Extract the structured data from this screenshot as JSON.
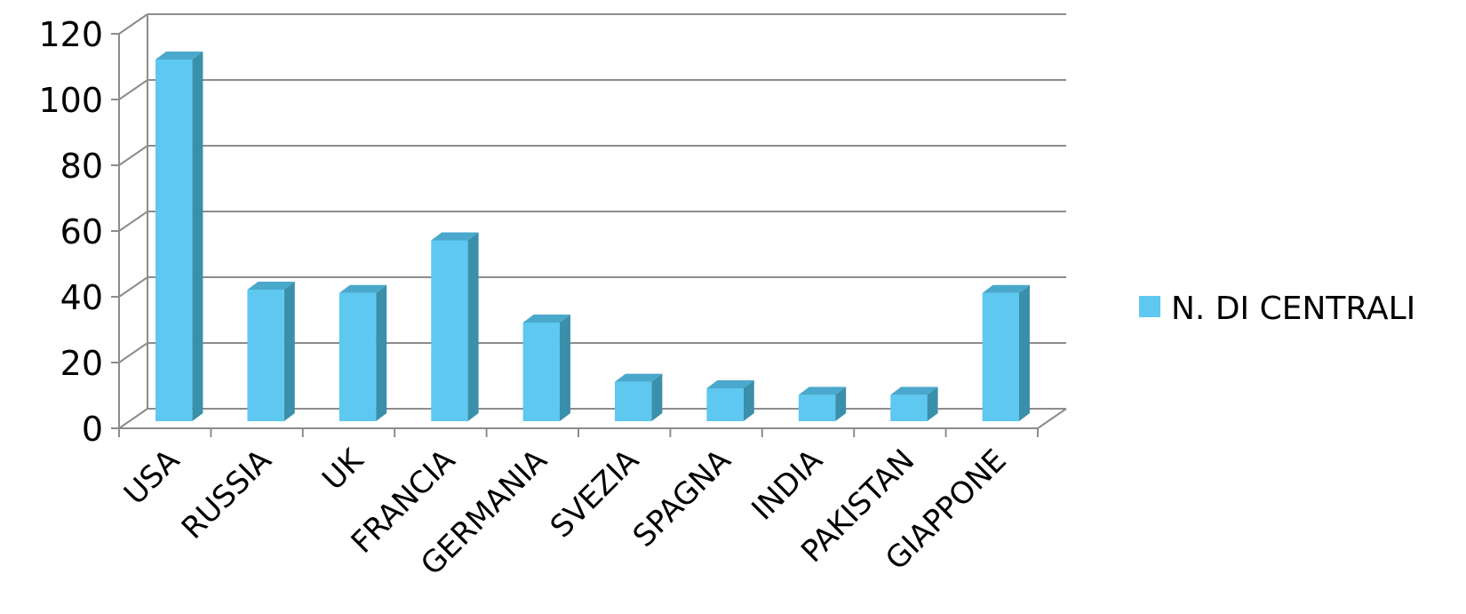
{
  "chart_data": {
    "type": "bar",
    "style": "3d-clustered-column",
    "title": "",
    "xlabel": "",
    "ylabel": "",
    "ylim": [
      0,
      120
    ],
    "y_ticks": [
      0,
      20,
      40,
      60,
      80,
      100,
      120
    ],
    "grid": true,
    "legend_position": "right",
    "categories": [
      "USA",
      "RUSSIA",
      "UK",
      "FRANCIA",
      "GERMANIA",
      "SVEZIA",
      "SPAGNA",
      "INDIA",
      "PAKISTAN",
      "GIAPPONE"
    ],
    "series": [
      {
        "name": "N. DI CENTRALI",
        "values": [
          110,
          40,
          39,
          55,
          30,
          12,
          10,
          8,
          8,
          39
        ],
        "color_front": "#5ec8f0",
        "color_side": "#3a8fab",
        "color_top": "#4aa8cc"
      }
    ]
  }
}
